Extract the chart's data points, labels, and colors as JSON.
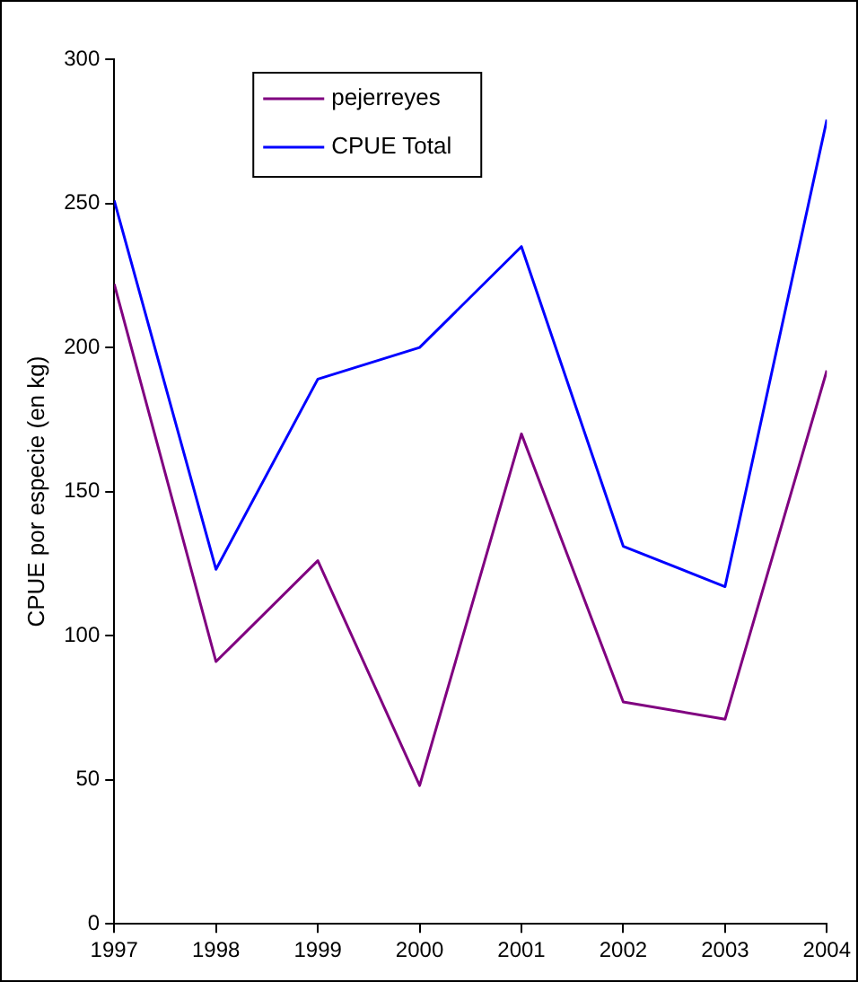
{
  "chart_data": {
    "type": "line",
    "ylabel": "CPUE por especie (en kg)",
    "x": [
      1997,
      1998,
      1999,
      2000,
      2001,
      2002,
      2003,
      2004
    ],
    "series": [
      {
        "name": "pejerreyes",
        "color": "#800080",
        "values": [
          222,
          91,
          126,
          48,
          170,
          77,
          71,
          192
        ]
      },
      {
        "name": "CPUE Total",
        "color": "#0000ff",
        "values": [
          251,
          123,
          189,
          200,
          235,
          131,
          117,
          279
        ]
      }
    ],
    "xlim": [
      1997,
      2004
    ],
    "xticks": [
      1997,
      1998,
      1999,
      2000,
      2001,
      2002,
      2003,
      2004
    ],
    "ylim": [
      0,
      300
    ],
    "yticks": [
      0,
      50,
      100,
      150,
      200,
      250,
      300
    ],
    "grid": false,
    "legend": "top left",
    "marker": "none",
    "line_style": "solid"
  }
}
